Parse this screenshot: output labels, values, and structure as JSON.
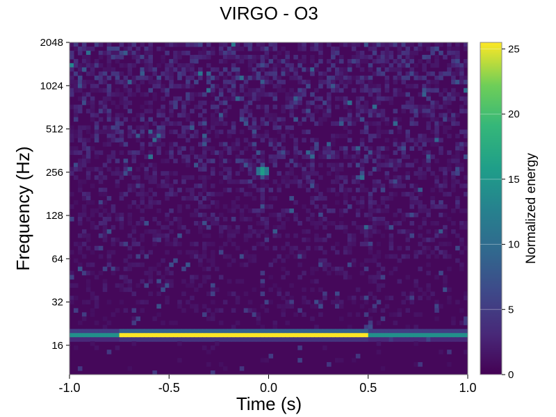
{
  "chart_data": {
    "type": "heatmap",
    "title": "VIRGO - O3",
    "xlabel": "Time (s)",
    "ylabel": "Frequency (Hz)",
    "xlim": [
      -1.0,
      1.0
    ],
    "ylim": [
      10,
      2048
    ],
    "yscale": "log2",
    "x_ticks": [
      "-1.0",
      "-0.5",
      "0.0",
      "0.5",
      "1.0"
    ],
    "x_tick_values": [
      -1.0,
      -0.5,
      0.0,
      0.5,
      1.0
    ],
    "y_ticks": [
      "16",
      "32",
      "64",
      "128",
      "256",
      "512",
      "1024",
      "2048"
    ],
    "y_tick_values": [
      16,
      32,
      64,
      128,
      256,
      512,
      1024,
      2048
    ],
    "colorbar": {
      "label": "Normalized energy",
      "ticks": [
        "0",
        "5",
        "10",
        "15",
        "20",
        "25"
      ],
      "tick_values": [
        0,
        5,
        10,
        15,
        20,
        25
      ],
      "range": [
        0,
        25.5
      ],
      "colormap": "viridis"
    },
    "features": [
      {
        "t_start": -1.0,
        "t_end": 1.0,
        "freq_hz": 19,
        "peak_energy": 25,
        "peak_between": [
          -0.75,
          0.5
        ]
      },
      {
        "t": -0.03,
        "freq_hz": 260,
        "energy": 15
      }
    ]
  }
}
